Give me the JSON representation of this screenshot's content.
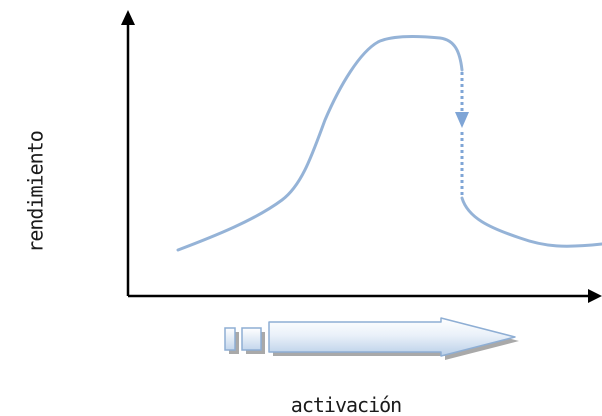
{
  "diagram": {
    "y_axis_label": "rendimiento",
    "x_axis_label": "activación",
    "colors": {
      "axis": "#000000",
      "curve": "#95b3d7",
      "drop_line": "#7fa5d6",
      "arrow_fill_light": "#f4f8fc",
      "arrow_fill_mid": "#c9dcef",
      "arrow_stroke": "#8eaed4",
      "arrow_shadow": "#9a9a9a"
    },
    "icons": {
      "progress_arrow": "block-arrow-right-icon"
    }
  }
}
